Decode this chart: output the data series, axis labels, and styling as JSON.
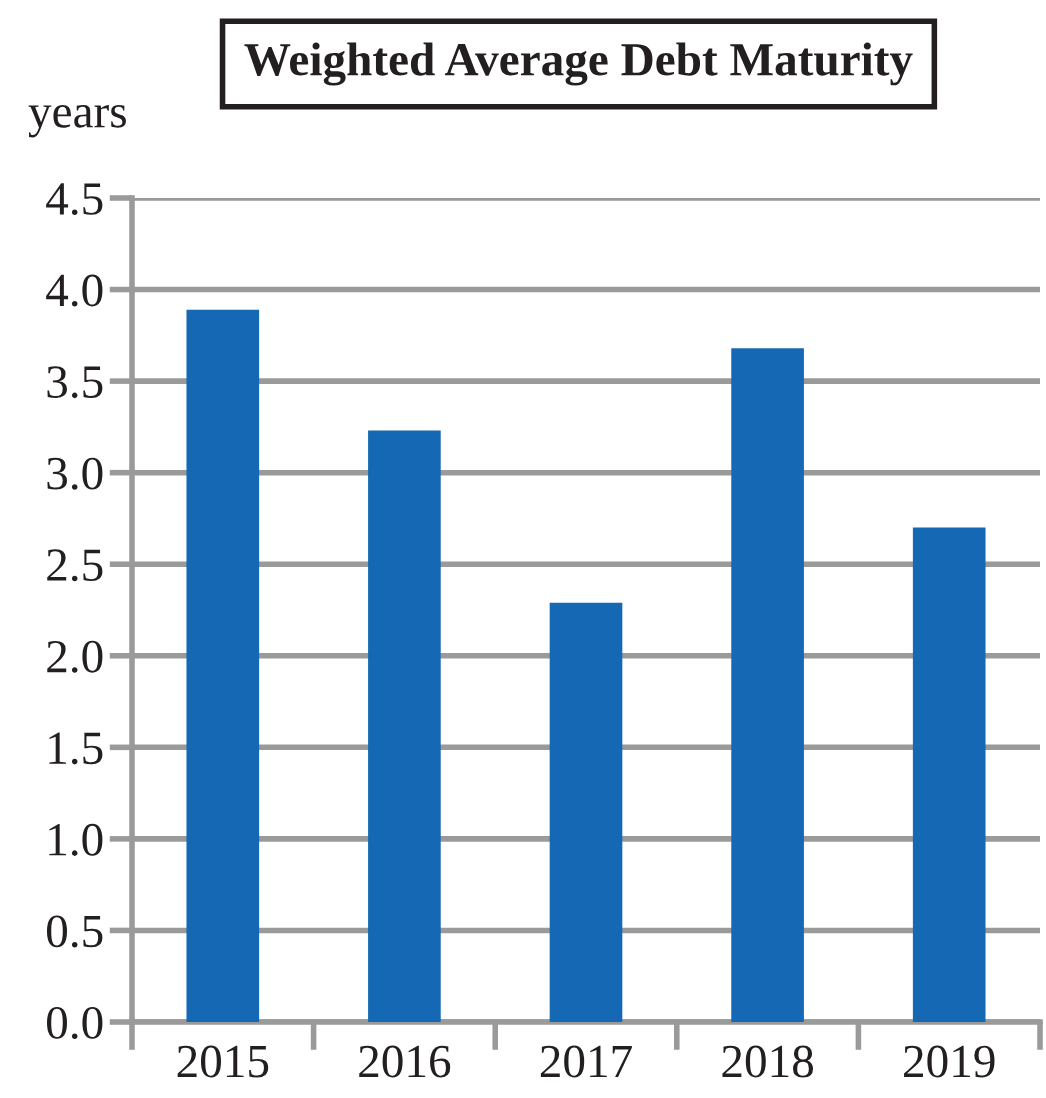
{
  "chart_data": {
    "type": "bar",
    "title": "Weighted Average Debt Maturity",
    "ylabel": "years",
    "categories": [
      "2015",
      "2016",
      "2017",
      "2018",
      "2019"
    ],
    "values": [
      3.89,
      3.23,
      2.29,
      3.68,
      2.7
    ],
    "color": "#1569b4",
    "ylim": [
      0,
      4.5
    ],
    "yticks": [
      {
        "value": 0,
        "label": "0.0"
      },
      0.5,
      {
        "value": 1,
        "label": "1.0"
      },
      1.5,
      {
        "value": 2,
        "label": "2.0"
      },
      2.5,
      {
        "value": 3,
        "label": "3.0"
      },
      3.5,
      {
        "value": 4,
        "label": "4.0"
      },
      4.5
    ],
    "grid": "y",
    "legend": false
  }
}
